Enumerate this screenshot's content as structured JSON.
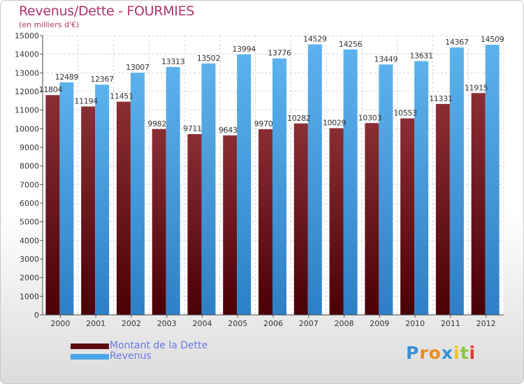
{
  "header": {
    "title": "Revenus/Dette - FOURMIES",
    "subtitle": "(en milliers d'€)"
  },
  "chart_data": {
    "type": "bar",
    "categories": [
      "2000",
      "2001",
      "2002",
      "2003",
      "2004",
      "2005",
      "2006",
      "2007",
      "2008",
      "2009",
      "2010",
      "2011",
      "2012"
    ],
    "series": [
      {
        "name": "Montant de la Dette",
        "color": "#7a1e25",
        "values": [
          11804,
          11194,
          11451,
          9982,
          9711,
          9643,
          9970,
          10282,
          10029,
          10303,
          10553,
          11331,
          11915
        ],
        "labels": [
          "11804",
          "11194",
          "11451",
          "9982",
          "9711",
          "9643",
          "9970",
          "10282",
          "10029",
          "10303",
          "10553",
          "11331",
          "11915"
        ]
      },
      {
        "name": "Revenus",
        "color": "#4aa6e8",
        "values": [
          12489,
          12367,
          13007,
          13313,
          13502,
          13994,
          13776,
          14529,
          14256,
          13449,
          13631,
          14367,
          14509
        ],
        "labels": [
          "12489",
          "12367",
          "13007",
          "13313",
          "13502",
          "13994",
          "13776",
          "14529",
          "14256",
          "13449",
          "13631",
          "14367",
          "14509"
        ]
      }
    ],
    "yticks": [
      0,
      1000,
      2000,
      3000,
      4000,
      5000,
      6000,
      7000,
      8000,
      9000,
      10000,
      11000,
      12000,
      13000,
      14000,
      15000
    ],
    "ylim": [
      0,
      15000
    ],
    "grid": true,
    "legend_position": "bottom-left"
  },
  "legend": [
    {
      "label": "Montant de la Dette",
      "color": "#5a0a10"
    },
    {
      "label": "Revenus",
      "color": "#4aa6e8"
    }
  ],
  "logo": {
    "letters": [
      "P",
      "r",
      "o",
      "x",
      "i",
      "t",
      "i"
    ],
    "colors": [
      "#3b8fd6",
      "#f08a1c",
      "#f08a1c",
      "#3b8fd6",
      "#f0c419",
      "#8cc63f",
      "#e8352b"
    ]
  }
}
